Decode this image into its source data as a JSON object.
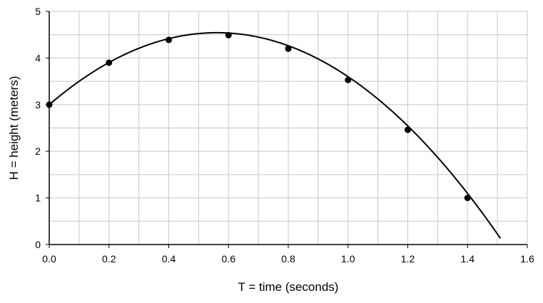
{
  "chart_data": {
    "type": "scatter",
    "title": "",
    "xlabel": "T = time (seconds)",
    "ylabel": "H = height (meters)",
    "xlim": [
      0,
      1.6
    ],
    "ylim": [
      0,
      5
    ],
    "x_ticks": [
      "0.0",
      "0.2",
      "0.4",
      "0.6",
      "0.8",
      "1.0",
      "1.2",
      "1.4",
      "1.6"
    ],
    "y_ticks": [
      "0",
      "1",
      "2",
      "3",
      "4",
      "5"
    ],
    "x_minor_step": 0.1,
    "y_minor_step": 0.5,
    "grid": true,
    "series": [
      {
        "points": [
          {
            "x": 0.0,
            "y": 3.0
          },
          {
            "x": 0.2,
            "y": 3.9
          },
          {
            "x": 0.4,
            "y": 4.39
          },
          {
            "x": 0.6,
            "y": 4.49
          },
          {
            "x": 0.8,
            "y": 4.2
          },
          {
            "x": 1.0,
            "y": 3.53
          },
          {
            "x": 1.2,
            "y": 2.46
          },
          {
            "x": 1.4,
            "y": 1.0
          }
        ],
        "curve": {
          "model": "quadratic",
          "coefficients": [
            3.0,
            5.5,
            -4.9
          ],
          "x_range": [
            0,
            1.51
          ]
        },
        "color": "#000000"
      }
    ],
    "grid_color": "#c8c8c8",
    "axis_color": "#000000"
  }
}
